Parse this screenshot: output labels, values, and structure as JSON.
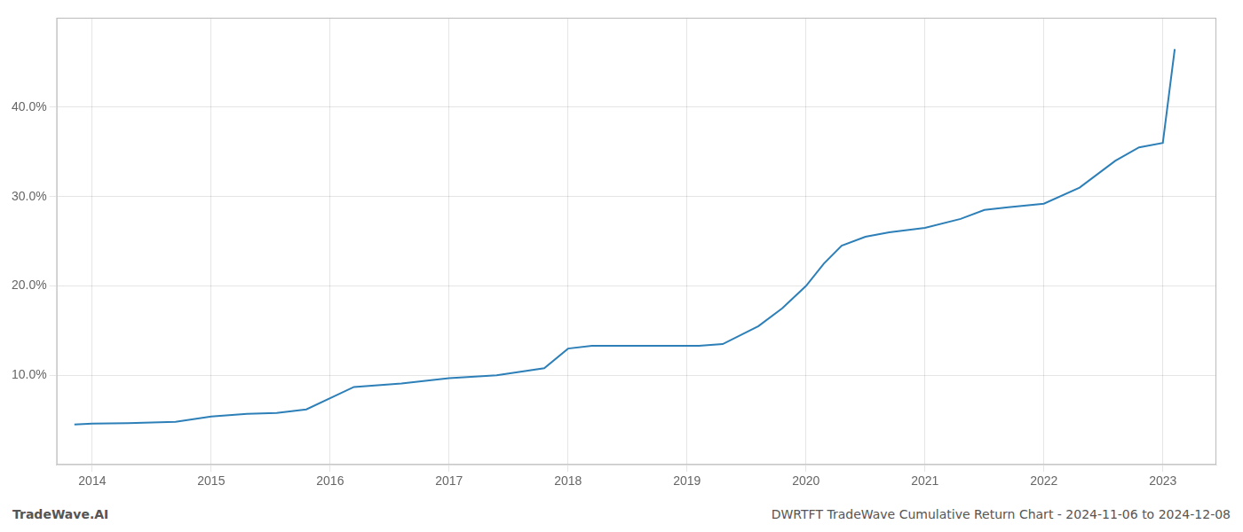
{
  "chart_data": {
    "type": "line",
    "x": [
      2013.85,
      2014.0,
      2014.3,
      2014.7,
      2015.0,
      2015.3,
      2015.55,
      2015.8,
      2016.2,
      2016.6,
      2017.0,
      2017.4,
      2017.8,
      2018.0,
      2018.2,
      2018.5,
      2019.0,
      2019.1,
      2019.3,
      2019.6,
      2019.8,
      2020.0,
      2020.15,
      2020.3,
      2020.5,
      2020.7,
      2021.0,
      2021.3,
      2021.5,
      2021.7,
      2022.0,
      2022.3,
      2022.6,
      2022.8,
      2023.0,
      2023.1
    ],
    "values": [
      4.5,
      4.6,
      4.65,
      4.8,
      5.4,
      5.7,
      5.8,
      6.2,
      8.7,
      9.1,
      9.7,
      10.0,
      10.8,
      13.0,
      13.3,
      13.3,
      13.3,
      13.3,
      13.5,
      15.5,
      17.5,
      20.0,
      22.5,
      24.5,
      25.5,
      26.0,
      26.5,
      27.5,
      28.5,
      28.8,
      29.2,
      31.0,
      34.0,
      35.5,
      36.0,
      46.5
    ],
    "color": "#2d7fb8",
    "xlim": [
      2013.7,
      2023.45
    ],
    "xticks": [
      2014,
      2015,
      2016,
      2017,
      2018,
      2019,
      2020,
      2021,
      2022,
      2023
    ],
    "ylim": [
      0,
      50
    ],
    "yticks": [
      {
        "value": 10,
        "label": "10.0%"
      },
      {
        "value": 20,
        "label": "20.0%"
      },
      {
        "value": 30,
        "label": "30.0%"
      },
      {
        "value": 40,
        "label": "40.0%"
      }
    ],
    "grid": true,
    "annotations": [
      "TradeWave.AI",
      "DWRTFT TradeWave Cumulative Return Chart - 2024-11-06 to 2024-12-08"
    ]
  }
}
